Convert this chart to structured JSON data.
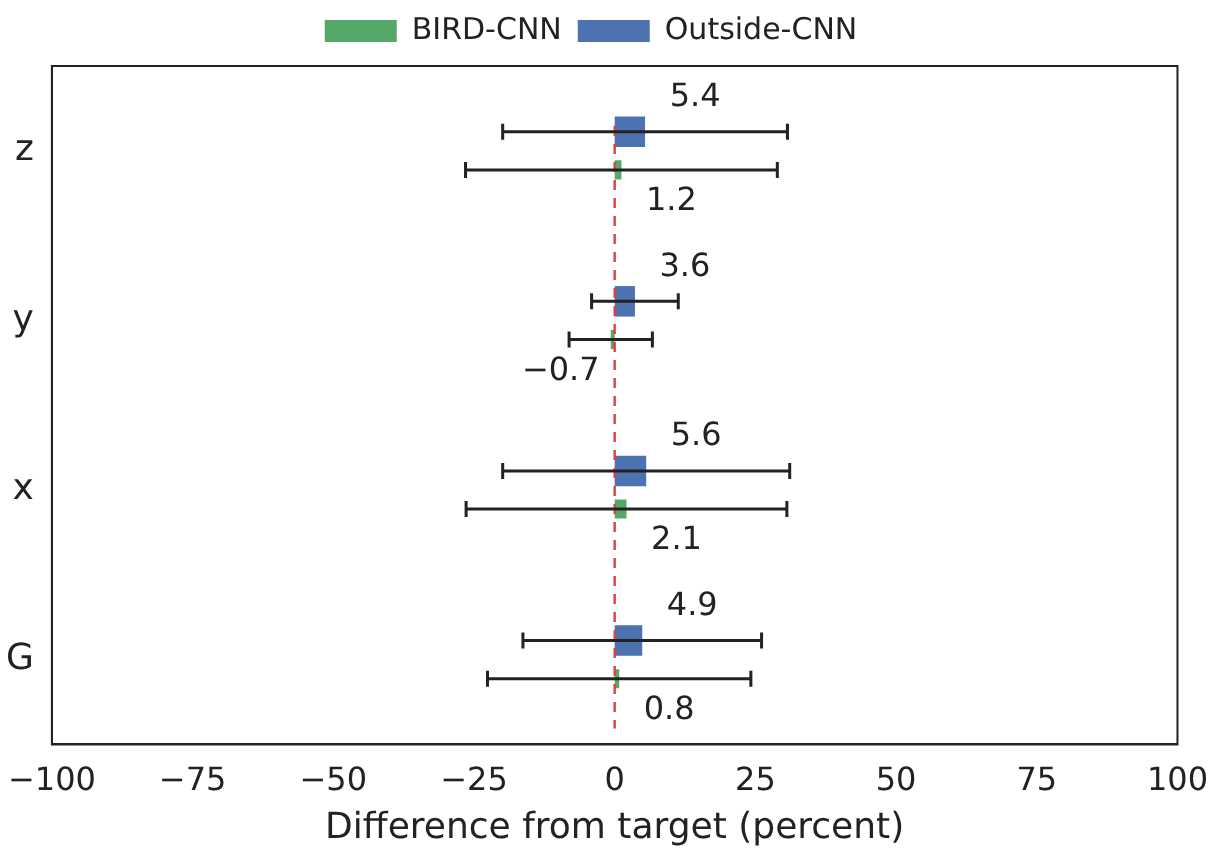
{
  "chart_data": {
    "type": "bar",
    "orientation": "horizontal",
    "xlabel": "Difference from target (percent)",
    "categories": [
      "z",
      "y",
      "x",
      "G"
    ],
    "series": [
      {
        "name": "BIRD-CNN",
        "color": "#55a868",
        "values": [
          1.2,
          -0.7,
          2.1,
          0.8
        ],
        "errors": [
          27.7,
          7.4,
          28.5,
          23.4
        ]
      },
      {
        "name": "Outside-CNN",
        "color": "#4c72b0",
        "values": [
          5.4,
          3.6,
          5.6,
          4.9
        ],
        "errors": [
          25.3,
          7.7,
          25.5,
          21.2
        ]
      }
    ],
    "xlim": [
      -100,
      100
    ],
    "xticks": [
      -100,
      -75,
      -50,
      -25,
      0,
      25,
      50,
      75,
      100
    ],
    "grid": false,
    "legend": "top",
    "data_labels": true,
    "ref_lines": [
      {
        "axis": "x",
        "value": 0,
        "color": "#e0403a",
        "line_style": "dashed"
      }
    ]
  }
}
